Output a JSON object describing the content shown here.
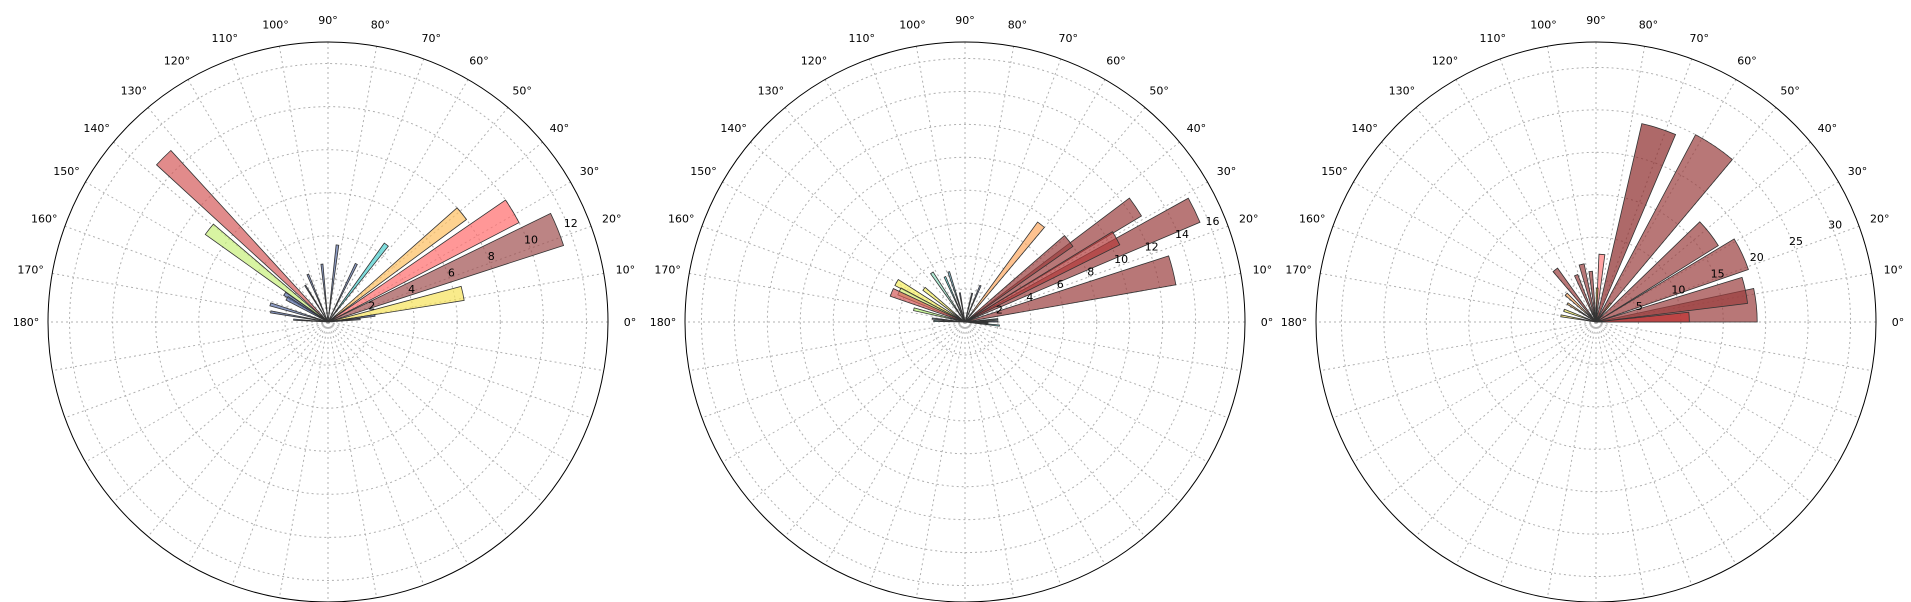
{
  "chart_data": [
    {
      "type": "polar-bar",
      "theta_range_deg": [
        0,
        180
      ],
      "theta_ticks": [
        "0°",
        "10°",
        "20°",
        "30°",
        "40°",
        "50°",
        "60°",
        "70°",
        "80°",
        "90°",
        "100°",
        "110°",
        "120°",
        "130°",
        "140°",
        "150°",
        "160°",
        "170°",
        "180°"
      ],
      "rmax": 13,
      "r_ticks": [
        "2",
        "4",
        "6",
        "8",
        "10",
        "12"
      ],
      "r_tick_values": [
        2,
        4,
        6,
        8,
        10,
        12
      ],
      "bars": [
        {
          "theta": 12,
          "width": 6,
          "r": 6.4,
          "color": "#f7e35a"
        },
        {
          "theta": 22,
          "width": 8,
          "r": 11.5,
          "color": "#a05050"
        },
        {
          "theta": 31,
          "width": 7,
          "r": 10.0,
          "color": "#ff6b6b"
        },
        {
          "theta": 39,
          "width": 5,
          "r": 8.0,
          "color": "#fdbf60"
        },
        {
          "theta": 53,
          "width": 3,
          "r": 4.5,
          "color": "#48cfcf"
        },
        {
          "theta": 64,
          "width": 2,
          "r": 3.0,
          "color": "#5a6fa8"
        },
        {
          "theta": 83,
          "width": 2,
          "r": 3.6,
          "color": "#5a6fa8"
        },
        {
          "theta": 96,
          "width": 2,
          "r": 2.7,
          "color": "#5a6fa8"
        },
        {
          "theta": 113,
          "width": 2,
          "r": 2.4,
          "color": "#5a6fa8"
        },
        {
          "theta": 122,
          "width": 1.5,
          "r": 2.0,
          "color": "#5a6fa8"
        },
        {
          "theta": 135,
          "width": 5,
          "r": 10.8,
          "color": "#d45a5a"
        },
        {
          "theta": 147,
          "width": 4,
          "r": 2.4,
          "color": "#5a6fa8"
        },
        {
          "theta": 150,
          "width": 5,
          "r": 2.2,
          "color": "#5a6fa8"
        },
        {
          "theta": 142,
          "width": 5,
          "r": 7.0,
          "color": "#c8f07a"
        },
        {
          "theta": 163,
          "width": 3,
          "r": 2.8,
          "color": "#5a6fa8"
        },
        {
          "theta": 170,
          "width": 2,
          "r": 2.7,
          "color": "#5a6fa8"
        },
        {
          "theta": 8,
          "width": 2,
          "r": 2.2,
          "color": "#5a6fa8"
        },
        {
          "theta": 5,
          "width": 2,
          "r": 1.5,
          "color": "#5a6fa8"
        },
        {
          "theta": 176,
          "width": 2,
          "r": 1.6,
          "color": "#5a6fa8"
        }
      ]
    },
    {
      "type": "polar-bar",
      "theta_range_deg": [
        0,
        180
      ],
      "theta_ticks": [
        "0°",
        "10°",
        "20°",
        "30°",
        "40°",
        "50°",
        "60°",
        "70°",
        "80°",
        "90°",
        "100°",
        "110°",
        "120°",
        "130°",
        "140°",
        "150°",
        "160°",
        "170°",
        "180°"
      ],
      "rmax": 17,
      "r_ticks": [
        "2",
        "4",
        "6",
        "8",
        "10",
        "12",
        "14",
        "16"
      ],
      "r_tick_values": [
        2,
        4,
        6,
        8,
        10,
        12,
        14,
        16
      ],
      "bars": [
        {
          "theta": 14,
          "width": 8,
          "r": 13.0,
          "color": "#9a3d3d"
        },
        {
          "theta": 26,
          "width": 6,
          "r": 15.5,
          "color": "#9a3d3d"
        },
        {
          "theta": 34,
          "width": 6,
          "r": 12.5,
          "color": "#9a3d3d"
        },
        {
          "theta": 29,
          "width": 5,
          "r": 10.5,
          "color": "#b23a3a"
        },
        {
          "theta": 52,
          "width": 4,
          "r": 7.5,
          "color": "#fda860"
        },
        {
          "theta": 38,
          "width": 6,
          "r": 8.0,
          "color": "#9a3d3d"
        },
        {
          "theta": 67,
          "width": 2,
          "r": 2.4,
          "color": "#5a6fa8"
        },
        {
          "theta": 76,
          "width": 2,
          "r": 1.8,
          "color": "#5a6fa8"
        },
        {
          "theta": 100,
          "width": 2,
          "r": 1.8,
          "color": "#5a6fa8"
        },
        {
          "theta": 108,
          "width": 2,
          "r": 3.2,
          "color": "#5aa0b8"
        },
        {
          "theta": 114,
          "width": 2,
          "r": 3.0,
          "color": "#48cfcf"
        },
        {
          "theta": 124,
          "width": 3,
          "r": 3.6,
          "color": "#8fe0c0"
        },
        {
          "theta": 141,
          "width": 4,
          "r": 3.2,
          "color": "#f7f060"
        },
        {
          "theta": 150,
          "width": 5,
          "r": 4.8,
          "color": "#f7f060"
        },
        {
          "theta": 155,
          "width": 6,
          "r": 4.4,
          "color": "#d8f070"
        },
        {
          "theta": 158,
          "width": 6,
          "r": 4.8,
          "color": "#d45a5a"
        },
        {
          "theta": 166,
          "width": 3,
          "r": 3.2,
          "color": "#b0f070"
        },
        {
          "theta": 174,
          "width": 2,
          "r": 2.0,
          "color": "#5a6fa8"
        },
        {
          "theta": 178,
          "width": 2,
          "r": 1.9,
          "color": "#48cfcf"
        },
        {
          "theta": 5,
          "width": 2,
          "r": 2.0,
          "color": "#48cfcf"
        },
        {
          "theta": 1,
          "width": 2,
          "r": 2.0,
          "color": "#5a6fa8"
        },
        {
          "theta": -6,
          "width": 2,
          "r": 2.1,
          "color": "#48cfcf"
        },
        {
          "theta": -2,
          "width": 2,
          "r": 1.4,
          "color": "#5a6fa8"
        }
      ]
    },
    {
      "type": "polar-bar",
      "theta_range_deg": [
        0,
        180
      ],
      "theta_ticks": [
        "0°",
        "10°",
        "20°",
        "30°",
        "40°",
        "50°",
        "60°",
        "70°",
        "80°",
        "90°",
        "100°",
        "110°",
        "120°",
        "130°",
        "140°",
        "150°",
        "160°",
        "170°",
        "180°"
      ],
      "rmax": 33,
      "r_ticks": [
        "5",
        "10",
        "15",
        "20",
        "25",
        "30"
      ],
      "r_tick_values": [
        5,
        10,
        15,
        20,
        25,
        30
      ],
      "bars": [
        {
          "theta": 6,
          "width": 12,
          "r": 19.0,
          "color": "#9a3d3d"
        },
        {
          "theta": 12,
          "width": 10,
          "r": 18.0,
          "color": "#9a3d3d"
        },
        {
          "theta": 25,
          "width": 12,
          "r": 19.0,
          "color": "#9a3d3d"
        },
        {
          "theta": 38,
          "width": 12,
          "r": 17.0,
          "color": "#9a3d3d"
        },
        {
          "theta": 56,
          "width": 12,
          "r": 25.0,
          "color": "#9a3d3d"
        },
        {
          "theta": 72,
          "width": 10,
          "r": 24.0,
          "color": "#8b2a2a"
        },
        {
          "theta": 3,
          "width": 6,
          "r": 11.0,
          "color": "#c03030"
        },
        {
          "theta": 85,
          "width": 5,
          "r": 8.0,
          "color": "#ff7a7a"
        },
        {
          "theta": 96,
          "width": 4,
          "r": 6.0,
          "color": "#9a3d3d"
        },
        {
          "theta": 104,
          "width": 5,
          "r": 7.0,
          "color": "#9a3d3d"
        },
        {
          "theta": 113,
          "width": 4,
          "r": 6.0,
          "color": "#9a3d3d"
        },
        {
          "theta": 128,
          "width": 5,
          "r": 7.8,
          "color": "#9a3d3d"
        },
        {
          "theta": 137,
          "width": 4,
          "r": 4.8,
          "color": "#fda860"
        },
        {
          "theta": 147,
          "width": 3,
          "r": 4.0,
          "color": "#fdbf60"
        },
        {
          "theta": 160,
          "width": 4,
          "r": 4.0,
          "color": "#f7f060"
        },
        {
          "theta": 170,
          "width": 3,
          "r": 4.2,
          "color": "#f7e35a"
        },
        {
          "theta": 88,
          "width": 3,
          "r": 4.0,
          "color": "#ffd040"
        },
        {
          "theta": 52,
          "width": 4,
          "r": 2.8,
          "color": "#fda040"
        }
      ]
    }
  ]
}
